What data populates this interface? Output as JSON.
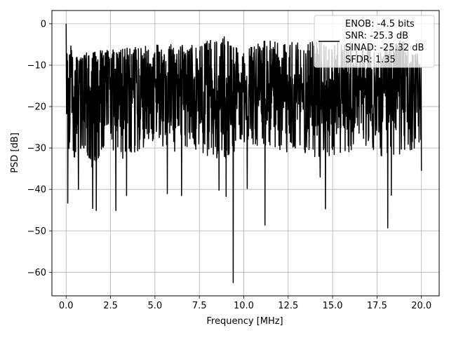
{
  "chart_data": {
    "type": "line",
    "title": "",
    "xlabel": "Frequency [MHz]",
    "ylabel": "PSD [dB]",
    "xlim": [
      -0.8,
      21.0
    ],
    "ylim": [
      -65.7,
      3.2
    ],
    "xticks": [
      0.0,
      2.5,
      5.0,
      7.5,
      10.0,
      12.5,
      15.0,
      17.5,
      20.0
    ],
    "xtick_labels": [
      "0.0",
      "2.5",
      "5.0",
      "7.5",
      "10.0",
      "12.5",
      "15.0",
      "17.5",
      "20.0"
    ],
    "yticks": [
      0,
      -10,
      -20,
      -30,
      -40,
      -50,
      -60
    ],
    "ytick_labels": [
      "0",
      "−10",
      "−20",
      "−30",
      "−40",
      "−50",
      "−60"
    ],
    "grid": true,
    "legend_position": "top-right",
    "legend_lines": [
      "ENOB: -4.5 bits",
      "SNR: -25.3 dB",
      "SINAD: -25.32 dB",
      "SFDR: 1.35"
    ],
    "series": [
      {
        "color": "#000000",
        "x_range": [
          0.0,
          20.0
        ],
        "typical_band_db": [
          -27.0,
          -7.0
        ],
        "upper_envelope": {
          "x": [
            0.0,
            0.4,
            1.5,
            3.0,
            5.0,
            7.0,
            9.0,
            10.0,
            11.0,
            13.0,
            15.0,
            17.0,
            19.0,
            20.0
          ],
          "y": [
            0.0,
            -8.0,
            -6.5,
            -6.0,
            -5.0,
            -5.0,
            -3.0,
            -6.0,
            -4.0,
            -4.5,
            -4.0,
            -5.0,
            -4.0,
            -8.0
          ]
        },
        "lower_envelope": {
          "x": [
            0.0,
            0.5,
            1.0,
            1.5,
            2.0,
            2.5,
            3.0,
            4.0,
            5.0,
            6.0,
            7.0,
            8.0,
            9.0,
            10.0,
            11.0,
            12.0,
            13.0,
            14.0,
            15.0,
            16.0,
            17.0,
            18.0,
            19.0,
            20.0
          ],
          "y": [
            -30.0,
            -33.0,
            -31.0,
            -35.0,
            -32.0,
            -30.0,
            -33.0,
            -31.0,
            -29.0,
            -31.0,
            -30.0,
            -32.0,
            -33.0,
            -29.0,
            -30.0,
            -32.0,
            -30.0,
            -33.0,
            -32.0,
            -31.0,
            -30.0,
            -33.0,
            -31.0,
            -30.0
          ]
        },
        "notable_dips": [
          {
            "x": 0.1,
            "y": -43.3
          },
          {
            "x": 0.7,
            "y": -40.0
          },
          {
            "x": 1.5,
            "y": -44.6
          },
          {
            "x": 1.7,
            "y": -45.1
          },
          {
            "x": 2.8,
            "y": -45.1
          },
          {
            "x": 3.4,
            "y": -41.5
          },
          {
            "x": 5.7,
            "y": -41.0
          },
          {
            "x": 6.5,
            "y": -41.5
          },
          {
            "x": 8.6,
            "y": -40.2
          },
          {
            "x": 9.0,
            "y": -41.7
          },
          {
            "x": 9.4,
            "y": -62.5
          },
          {
            "x": 10.2,
            "y": -39.8
          },
          {
            "x": 11.2,
            "y": -48.6
          },
          {
            "x": 14.3,
            "y": -37.0
          },
          {
            "x": 14.6,
            "y": -44.7
          },
          {
            "x": 18.1,
            "y": -49.3
          },
          {
            "x": 18.3,
            "y": -41.4
          },
          {
            "x": 20.0,
            "y": -35.5
          }
        ]
      }
    ]
  }
}
